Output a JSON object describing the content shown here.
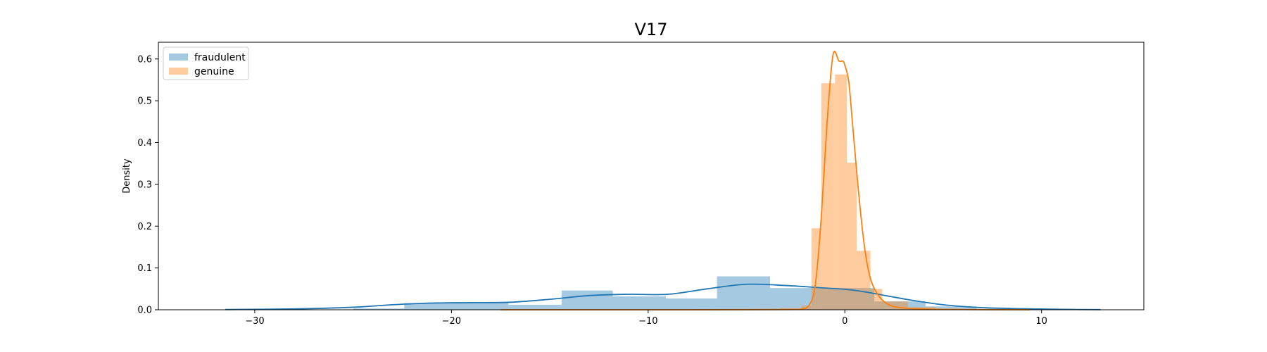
{
  "chart_data": {
    "type": "bar",
    "title": "V17",
    "xlabel": "",
    "ylabel": "Density",
    "xlim": [
      -34.9,
      15.2
    ],
    "ylim": [
      0,
      0.64
    ],
    "xticks": [
      -30,
      -20,
      -10,
      0,
      10
    ],
    "xtick_labels": [
      "−30",
      "−20",
      "−10",
      "0",
      "10"
    ],
    "yticks": [
      0.0,
      0.1,
      0.2,
      0.3,
      0.4,
      0.5,
      0.6
    ],
    "ytick_labels": [
      "0.0",
      "0.1",
      "0.2",
      "0.3",
      "0.4",
      "0.5",
      "0.6"
    ],
    "grid": false,
    "legend_position": "top-left",
    "series": [
      {
        "name": "fraudulent",
        "color": "#1f77b4",
        "bar_alpha": 0.4,
        "bins": [
          {
            "x0": -25.0,
            "x1": -22.4,
            "density": 0.003
          },
          {
            "x0": -22.4,
            "x1": -17.1,
            "density": 0.016
          },
          {
            "x0": -17.1,
            "x1": -14.4,
            "density": 0.012
          },
          {
            "x0": -14.4,
            "x1": -11.8,
            "density": 0.046
          },
          {
            "x0": -11.8,
            "x1": -9.1,
            "density": 0.032
          },
          {
            "x0": -9.1,
            "x1": -6.5,
            "density": 0.027
          },
          {
            "x0": -6.5,
            "x1": -3.8,
            "density": 0.08
          },
          {
            "x0": -3.8,
            "x1": -1.2,
            "density": 0.052
          },
          {
            "x0": -1.2,
            "x1": 1.5,
            "density": 0.052
          },
          {
            "x0": 1.5,
            "x1": 4.1,
            "density": 0.02
          },
          {
            "x0": 4.1,
            "x1": 6.7,
            "density": 0.008
          },
          {
            "x0": 6.7,
            "x1": 9.3,
            "density": 0.002
          }
        ],
        "kde": {
          "x": [
            -31.5,
            -28,
            -25,
            -23,
            -21,
            -19,
            -17,
            -15,
            -13,
            -11,
            -9,
            -7,
            -5,
            -3,
            -1,
            0,
            1,
            3,
            5,
            7,
            9,
            11,
            13
          ],
          "y": [
            0.0005,
            0.002,
            0.006,
            0.012,
            0.016,
            0.017,
            0.018,
            0.025,
            0.034,
            0.037,
            0.037,
            0.05,
            0.061,
            0.058,
            0.052,
            0.049,
            0.043,
            0.026,
            0.012,
            0.005,
            0.0025,
            0.001,
            0.0003
          ]
        }
      },
      {
        "name": "genuine",
        "color": "#ff7f0e",
        "bar_alpha": 0.4,
        "bins": [
          {
            "x0": -5.5,
            "x1": -4.4,
            "density": 0.001
          },
          {
            "x0": -4.4,
            "x1": -3.3,
            "density": 0.002
          },
          {
            "x0": -3.3,
            "x1": -2.2,
            "density": 0.004
          },
          {
            "x0": -2.2,
            "x1": -1.7,
            "density": 0.01
          },
          {
            "x0": -1.7,
            "x1": -1.2,
            "density": 0.195
          },
          {
            "x0": -1.2,
            "x1": -0.5,
            "density": 0.542
          },
          {
            "x0": -0.5,
            "x1": 0.1,
            "density": 0.563
          },
          {
            "x0": 0.1,
            "x1": 0.6,
            "density": 0.352
          },
          {
            "x0": 0.6,
            "x1": 1.3,
            "density": 0.141
          },
          {
            "x0": 1.3,
            "x1": 1.9,
            "density": 0.05
          },
          {
            "x0": 1.9,
            "x1": 3.2,
            "density": 0.02
          },
          {
            "x0": 3.2,
            "x1": 4.6,
            "density": 0.006
          },
          {
            "x0": 4.6,
            "x1": 9.4,
            "density": 0.001
          }
        ],
        "kde": {
          "x": [
            -17.5,
            -8,
            -3,
            -2.2,
            -1.8,
            -1.5,
            -1.2,
            -0.9,
            -0.6,
            -0.3,
            -0.1,
            0,
            0.2,
            0.4,
            0.7,
            1.0,
            1.3,
            1.7,
            2.2,
            3,
            5,
            9.4
          ],
          "y": [
            0.0,
            0.0,
            0.0005,
            0.002,
            0.012,
            0.06,
            0.22,
            0.45,
            0.61,
            0.595,
            0.595,
            0.585,
            0.545,
            0.44,
            0.28,
            0.15,
            0.075,
            0.035,
            0.013,
            0.004,
            0.001,
            0.0
          ]
        }
      }
    ]
  }
}
